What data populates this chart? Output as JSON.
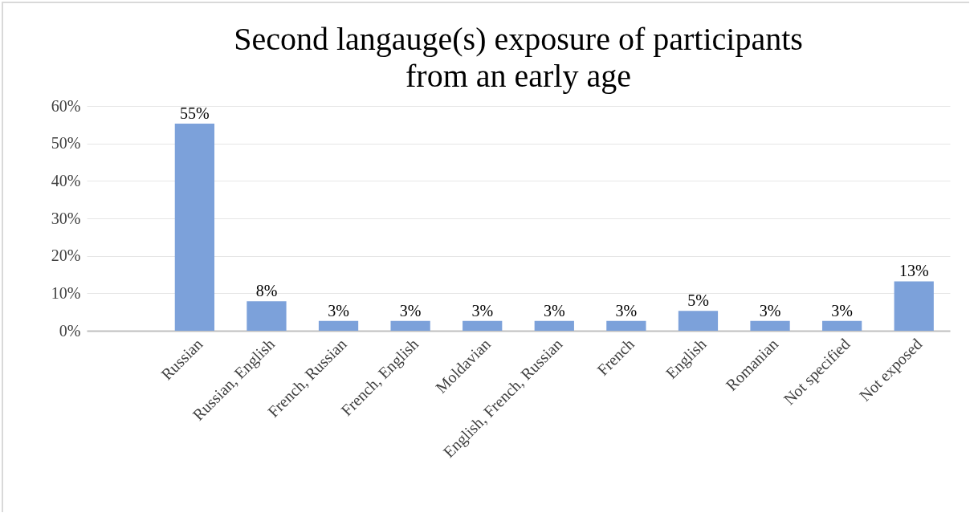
{
  "chart_data": {
    "type": "bar",
    "title": "Second langauge(s) exposure of participants from an early age",
    "categories": [
      null,
      "Russian",
      "Russian, English",
      "French, Russian",
      "French, English",
      "Moldavian",
      "English, French, Russian",
      "French",
      "English",
      "Romanian",
      "Not specified",
      "Not exposed"
    ],
    "values": [
      null,
      55.3,
      7.9,
      2.6,
      2.6,
      2.6,
      2.6,
      2.6,
      5.3,
      2.6,
      2.6,
      13.2
    ],
    "value_labels": [
      null,
      "55%",
      "8%",
      "3%",
      "3%",
      "3%",
      "3%",
      "3%",
      "5%",
      "3%",
      "3%",
      "13%"
    ],
    "color": "#7ca1da",
    "ylim": [
      0,
      60
    ],
    "yticks": [
      {
        "value": 0,
        "label": "0%"
      },
      {
        "value": 10,
        "label": "10%"
      },
      {
        "value": 20,
        "label": "20%"
      },
      {
        "value": 30,
        "label": "30%"
      },
      {
        "value": 40,
        "label": "40%"
      },
      {
        "value": 50,
        "label": "50%"
      },
      {
        "value": 60,
        "label": "60%"
      }
    ],
    "grid": "y"
  }
}
